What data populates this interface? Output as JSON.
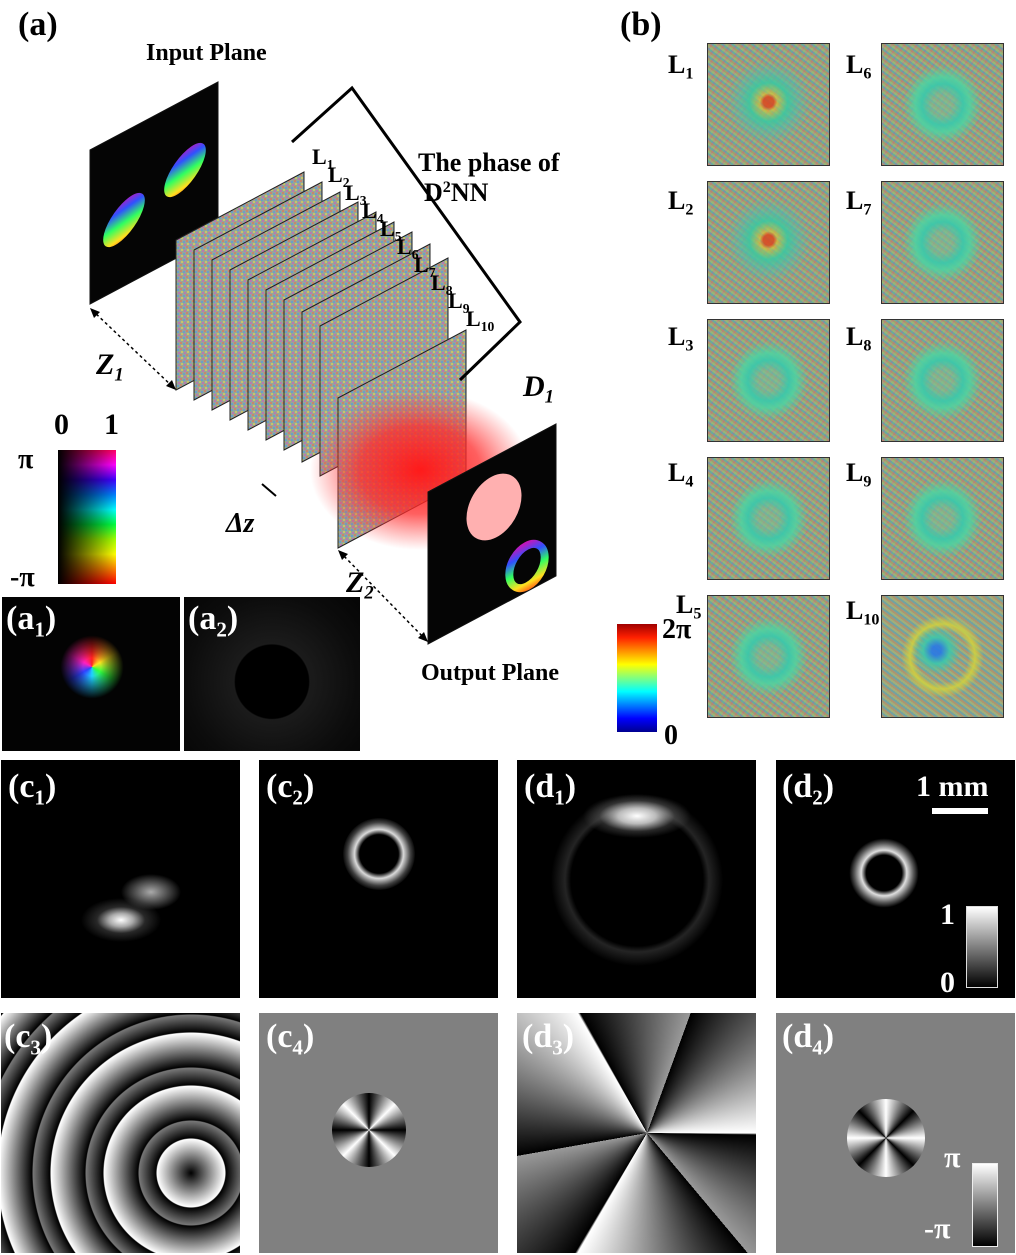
{
  "panel_a": {
    "label": "(a)",
    "input_plane": "Input Plane",
    "output_plane": "Output Plane",
    "bracket_title_line1": "The phase of",
    "bracket_title_line2_main": "D",
    "bracket_title_line2_sup": "2",
    "bracket_title_line2_tail": "NN",
    "layers": [
      {
        "main": "L",
        "sub": "1"
      },
      {
        "main": "L",
        "sub": "2"
      },
      {
        "main": "L",
        "sub": "3"
      },
      {
        "main": "L",
        "sub": "4"
      },
      {
        "main": "L",
        "sub": "5"
      },
      {
        "main": "L",
        "sub": "6"
      },
      {
        "main": "L",
        "sub": "7"
      },
      {
        "main": "L",
        "sub": "8"
      },
      {
        "main": "L",
        "sub": "9"
      },
      {
        "main": "L",
        "sub": "10"
      }
    ],
    "z1": {
      "main": "Z",
      "sub": "1"
    },
    "z2": {
      "main": "Z",
      "sub": "2"
    },
    "dz": "Δz",
    "d1": {
      "main": "D",
      "sub": "1"
    },
    "colormap": {
      "top_left": "0",
      "top_right": "1",
      "left_top": "π",
      "left_bottom": "-π"
    }
  },
  "panel_a1": {
    "main": "(a",
    "sub": "1",
    "tail": ")"
  },
  "panel_a2": {
    "main": "(a",
    "sub": "2",
    "tail": ")"
  },
  "panel_b": {
    "label": "(b)",
    "tiles": [
      {
        "main": "L",
        "sub": "1"
      },
      {
        "main": "L",
        "sub": "6"
      },
      {
        "main": "L",
        "sub": "2"
      },
      {
        "main": "L",
        "sub": "7"
      },
      {
        "main": "L",
        "sub": "3"
      },
      {
        "main": "L",
        "sub": "8"
      },
      {
        "main": "L",
        "sub": "4"
      },
      {
        "main": "L",
        "sub": "9"
      },
      {
        "main": "L",
        "sub": "5"
      },
      {
        "main": "L",
        "sub": "10"
      }
    ],
    "colorbar": {
      "top": "2π",
      "bottom": "0"
    }
  },
  "bottom_panels": [
    {
      "main": "(c",
      "sub": "1",
      "tail": ")"
    },
    {
      "main": "(c",
      "sub": "2",
      "tail": ")"
    },
    {
      "main": "(d",
      "sub": "1",
      "tail": ")"
    },
    {
      "main": "(d",
      "sub": "2",
      "tail": ")"
    },
    {
      "main": "(c",
      "sub": "3",
      "tail": ")"
    },
    {
      "main": "(c",
      "sub": "4",
      "tail": ")"
    },
    {
      "main": "(d",
      "sub": "3",
      "tail": ")"
    },
    {
      "main": "(d",
      "sub": "4",
      "tail": ")"
    }
  ],
  "scale_bar": "1 mm",
  "intensity_bar": {
    "top": "1",
    "bottom": "0"
  },
  "phase_bar": {
    "top": "π",
    "bottom": "-π"
  }
}
